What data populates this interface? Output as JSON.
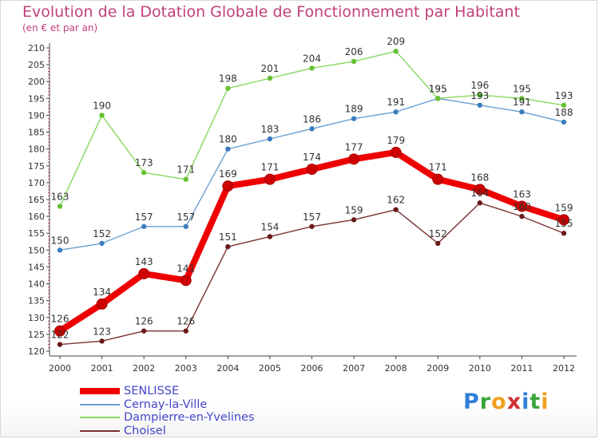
{
  "title": "Evolution de la Dotation Globale de Fonctionnement par Habitant",
  "subtitle": "(en € et par an)",
  "logo": {
    "letters": [
      {
        "char": "P",
        "color": "#2f7fd6"
      },
      {
        "char": "r",
        "color": "#3aa63a"
      },
      {
        "char": "o",
        "color": "#f0a020"
      },
      {
        "char": "x",
        "color": "#d03030"
      },
      {
        "char": "i",
        "color": "#2f7fd6"
      },
      {
        "char": "t",
        "color": "#3aa63a"
      },
      {
        "char": "i",
        "color": "#f0a020"
      }
    ]
  },
  "chart_data": {
    "type": "line",
    "title": "Evolution de la Dotation Globale de Fonctionnement par Habitant",
    "subtitle": "(en € et par an)",
    "xlabel": "",
    "ylabel": "",
    "categories": [
      "2000",
      "2001",
      "2002",
      "2003",
      "2004",
      "2005",
      "2006",
      "2007",
      "2008",
      "2009",
      "2010",
      "2011",
      "2012"
    ],
    "ylim": [
      120,
      210
    ],
    "yticks": [
      120,
      125,
      130,
      135,
      140,
      145,
      150,
      155,
      160,
      165,
      170,
      175,
      180,
      185,
      190,
      195,
      200,
      205,
      210
    ],
    "grid": false,
    "legend_position": "bottom-left",
    "series": [
      {
        "name": "SENLISSE",
        "color": "#ee0000",
        "markerColor": "#cc0000",
        "values": [
          126,
          134,
          143,
          141,
          169,
          171,
          174,
          177,
          179,
          171,
          168,
          163,
          159
        ]
      },
      {
        "name": "Cernay-la-Ville",
        "color": "#6a9fd0",
        "markerColor": "#3a7ec0",
        "values": [
          150,
          152,
          157,
          157,
          180,
          183,
          186,
          189,
          191,
          195,
          193,
          191,
          188
        ]
      },
      {
        "name": "Dampierre-en-Yvelines",
        "color": "#88d860",
        "markerColor": "#66c033",
        "values": [
          163,
          190,
          173,
          171,
          198,
          201,
          204,
          206,
          209,
          195,
          196,
          195,
          193
        ]
      },
      {
        "name": "Choisel",
        "color": "#7a3030",
        "markerColor": "#6a1a1a",
        "values": [
          122,
          123,
          126,
          126,
          151,
          154,
          157,
          159,
          162,
          152,
          164,
          160,
          155
        ]
      }
    ]
  }
}
